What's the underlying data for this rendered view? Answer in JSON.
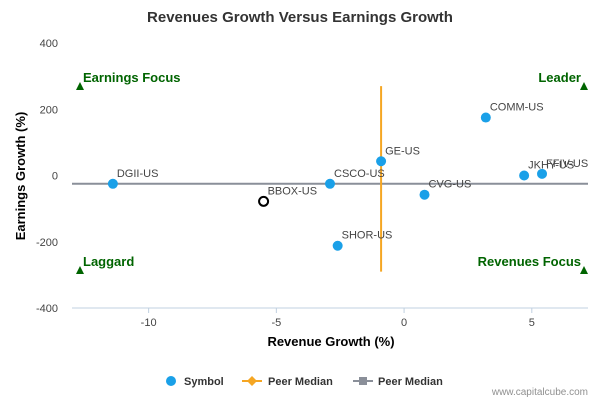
{
  "chart_data": {
    "type": "scatter",
    "title": "Revenues Growth Versus Earnings Growth",
    "xlabel": "Revenue Growth (%)",
    "ylabel": "Earnings Growth (%)",
    "xlim": [
      -13,
      7.2
    ],
    "ylim": [
      -400,
      400
    ],
    "x_ticks": [
      -10,
      -5,
      0,
      5
    ],
    "y_ticks": [
      -400,
      -200,
      0,
      200,
      400
    ],
    "series": [
      {
        "name": "Symbol",
        "points": [
          {
            "label": "DGII-US",
            "x": -11.4,
            "y": -25,
            "hollow": false
          },
          {
            "label": "BBOX-US",
            "x": -5.5,
            "y": -78,
            "hollow": true
          },
          {
            "label": "CSCO-US",
            "x": -2.9,
            "y": -25,
            "hollow": false
          },
          {
            "label": "SHOR-US",
            "x": -2.6,
            "y": -212,
            "hollow": false
          },
          {
            "label": "GE-US",
            "x": -0.9,
            "y": 43,
            "hollow": false
          },
          {
            "label": "CVG-US",
            "x": 0.8,
            "y": -58,
            "hollow": false
          },
          {
            "label": "COMM-US",
            "x": 3.2,
            "y": 175,
            "hollow": false
          },
          {
            "label": "JKHY-US",
            "x": 4.7,
            "y": 0,
            "hollow": false
          },
          {
            "label": "FFIV-US",
            "x": 5.4,
            "y": 5,
            "hollow": false
          }
        ]
      }
    ],
    "peer_median_x": -0.9,
    "peer_median_y": -25,
    "peer_median_x_range": [
      -290,
      270
    ],
    "quadrants": {
      "top_left": "Earnings Focus",
      "top_right": "Leader",
      "bottom_left": "Laggard",
      "bottom_right": "Revenues Focus"
    },
    "legend": [
      {
        "label": "Symbol",
        "color": "#1aa0e8"
      },
      {
        "label": "Peer Median",
        "color": "#f5a623"
      },
      {
        "label": "Peer Median",
        "color": "#8a8f99"
      }
    ],
    "legend_position": "bottom-center",
    "colors": {
      "point": "#1aa0e8",
      "peer_x": "#f5a623",
      "peer_y": "#8a8f99",
      "quadrant": "#006400",
      "axis": "#c0d0e0"
    }
  },
  "credit": "www.capitalcube.com"
}
